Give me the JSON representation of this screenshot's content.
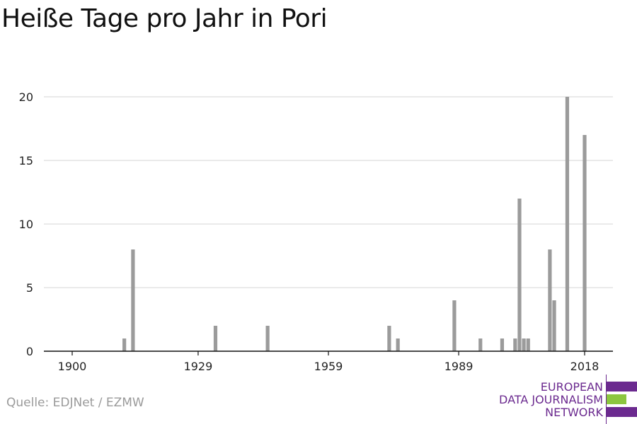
{
  "title": "Heiße Tage pro Jahr in Pori",
  "source": "Quelle: EDJNet / EZMW",
  "logo": {
    "lines": [
      "EUROPEAN",
      "DATA JOURNALISM",
      "NETWORK"
    ],
    "colors": {
      "purple": "#6b2a8f",
      "green": "#8cc63f"
    }
  },
  "chart_data": {
    "type": "bar",
    "x_ticks": [
      1900,
      1929,
      1959,
      1989,
      2018
    ],
    "y_ticks": [
      0,
      5,
      10,
      15,
      20
    ],
    "ylim": [
      0,
      20
    ],
    "xlim": [
      1900,
      2020
    ],
    "grid": true,
    "bar_color": "#9b9b9b",
    "series": [
      {
        "values": [
          {
            "x": 1912,
            "y": 1
          },
          {
            "x": 1914,
            "y": 8
          },
          {
            "x": 1933,
            "y": 2
          },
          {
            "x": 1945,
            "y": 2
          },
          {
            "x": 1973,
            "y": 2
          },
          {
            "x": 1975,
            "y": 1
          },
          {
            "x": 1988,
            "y": 4
          },
          {
            "x": 1994,
            "y": 1
          },
          {
            "x": 1999,
            "y": 1
          },
          {
            "x": 2002,
            "y": 1
          },
          {
            "x": 2003,
            "y": 12
          },
          {
            "x": 2004,
            "y": 1
          },
          {
            "x": 2005,
            "y": 1
          },
          {
            "x": 2010,
            "y": 8
          },
          {
            "x": 2011,
            "y": 4
          },
          {
            "x": 2014,
            "y": 20
          },
          {
            "x": 2018,
            "y": 17
          }
        ]
      }
    ]
  }
}
